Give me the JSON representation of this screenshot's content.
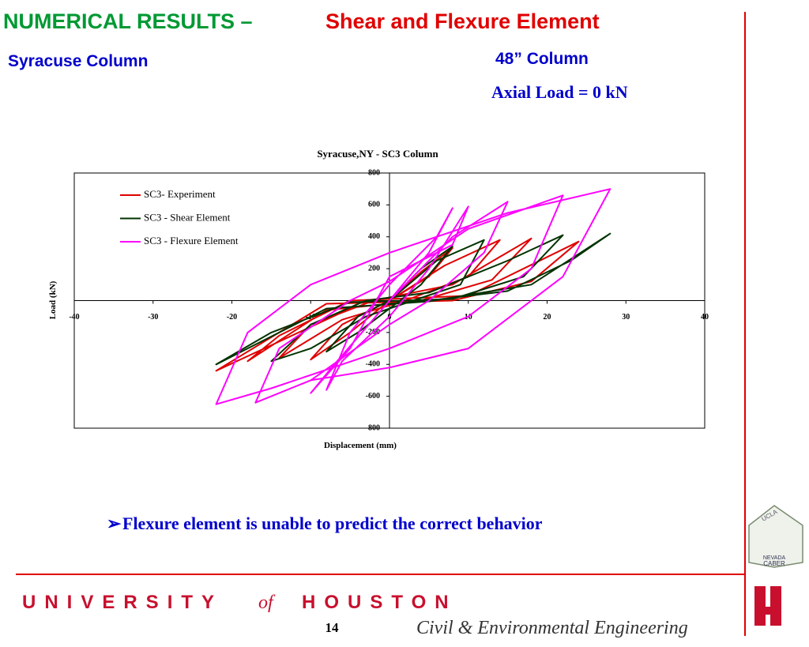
{
  "header": {
    "title_part1": "NUMERICAL RESULTS –",
    "title_part2": "Shear and Flexure Element",
    "subtitle": "Syracuse Column",
    "column": "48” Column",
    "axial_load": "Axial Load = 0 kN"
  },
  "chart_data": {
    "type": "line",
    "title": "Syracuse,NY - SC3 Column",
    "x_label": "Displacement (mm)",
    "y_label": "Load (kN)",
    "xlim": [
      -40,
      40
    ],
    "xticks": [
      -40,
      -30,
      -20,
      -10,
      0,
      10,
      20,
      30,
      40
    ],
    "ylim": [
      -800,
      800
    ],
    "yticks": [
      -800,
      -600,
      -400,
      -200,
      0,
      200,
      400,
      600,
      800
    ],
    "grid": false,
    "legend": "upper-left",
    "series": [
      {
        "name": "SC3- Experiment",
        "color": "#e00000",
        "x": [
          0,
          4,
          8,
          5,
          0,
          -5,
          -10,
          -6,
          0,
          7,
          14,
          10,
          2,
          -6,
          -14,
          -10,
          -2,
          8,
          18,
          13,
          4,
          -8,
          -18,
          -14,
          -5,
          10,
          24,
          18,
          8,
          -8,
          -22,
          -15,
          -5
        ],
        "values": [
          0,
          180,
          330,
          150,
          0,
          -200,
          -370,
          -150,
          0,
          220,
          380,
          150,
          0,
          -120,
          -360,
          -150,
          0,
          100,
          390,
          130,
          0,
          -60,
          -380,
          -220,
          0,
          30,
          370,
          120,
          0,
          -20,
          -440,
          -280,
          -50
        ]
      },
      {
        "name": "SC3 - Shear Element",
        "color": "#003300",
        "x": [
          0,
          4,
          8,
          4,
          0,
          -4,
          -8,
          -4,
          0,
          6,
          12,
          9,
          3,
          -3,
          -10,
          -15,
          -10,
          -3,
          5,
          15,
          22,
          17,
          8,
          -5,
          -15,
          -22,
          -16,
          -8,
          5,
          18,
          28,
          23,
          15,
          5,
          0
        ],
        "values": [
          0,
          200,
          340,
          100,
          -50,
          -200,
          -320,
          -100,
          0,
          250,
          380,
          100,
          0,
          -100,
          -300,
          -380,
          -150,
          0,
          50,
          250,
          410,
          150,
          10,
          -10,
          -200,
          -400,
          -250,
          -50,
          -5,
          100,
          420,
          250,
          60,
          0,
          -20
        ]
      },
      {
        "name": "SC3 - Flexure Element",
        "color": "#ff00ff",
        "x": [
          0,
          5,
          8,
          6,
          0,
          -5,
          -8,
          -6,
          0,
          5,
          10,
          8,
          0,
          -5,
          -10,
          -7,
          0,
          8,
          15,
          12,
          5,
          0,
          -10,
          -17,
          -14,
          -5,
          0,
          10,
          22,
          18,
          10,
          0,
          -15,
          -22,
          -18,
          -10,
          0,
          15,
          28,
          22,
          10,
          0,
          -10
        ],
        "values": [
          0,
          300,
          580,
          400,
          100,
          -200,
          -560,
          -380,
          -100,
          200,
          590,
          350,
          150,
          -300,
          -580,
          -400,
          0,
          400,
          620,
          300,
          0,
          -150,
          -500,
          -640,
          -300,
          0,
          120,
          450,
          660,
          200,
          -100,
          -300,
          -550,
          -650,
          -200,
          100,
          300,
          550,
          700,
          150,
          -300,
          -420,
          -500
        ]
      }
    ]
  },
  "bullet": "Flexure element is unable to predict the correct behavior",
  "logo": {
    "top": "UCLA",
    "middle": "NEVADA",
    "bottom": "CABER"
  },
  "footer": {
    "university": "UNIVERSITY",
    "of": "of",
    "houston": "HOUSTON",
    "page": "14",
    "department": "Civil & Environmental Engineering"
  }
}
